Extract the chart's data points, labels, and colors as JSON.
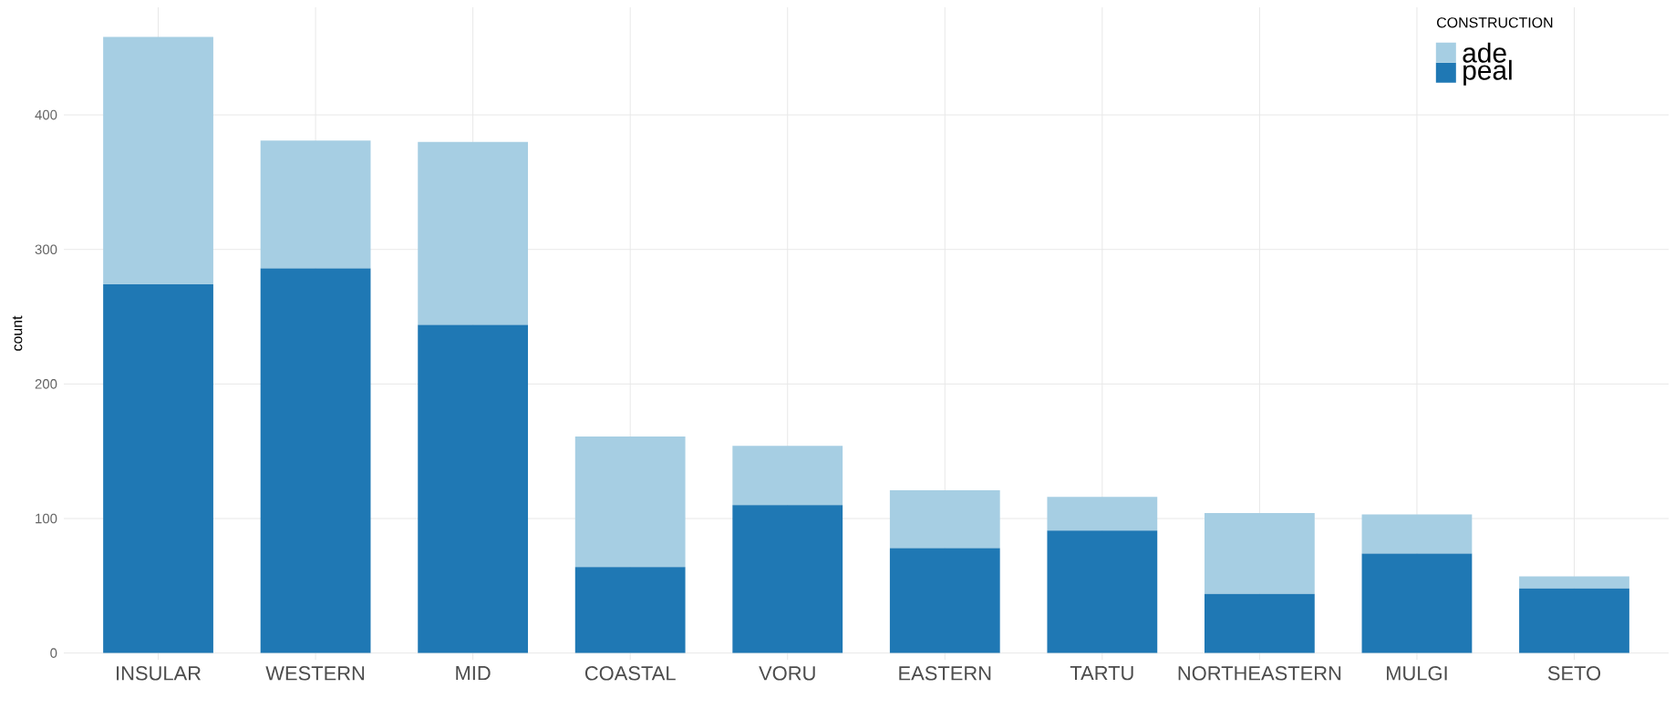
{
  "chart_data": {
    "type": "bar",
    "stacked": true,
    "ylabel": "count",
    "legend_title": "CONSTRUCTION",
    "categories": [
      "INSULAR",
      "WESTERN",
      "MID",
      "COASTAL",
      "VORU",
      "EASTERN",
      "TARTU",
      "NORTHEASTERN",
      "MULGI",
      "SETO"
    ],
    "series": [
      {
        "name": "peal",
        "color": "#1f78b4",
        "values": [
          274,
          286,
          244,
          64,
          110,
          78,
          91,
          44,
          74,
          48
        ]
      },
      {
        "name": "ade",
        "color": "#a6cee3",
        "values": [
          184,
          95,
          136,
          97,
          44,
          43,
          25,
          60,
          29,
          9
        ]
      }
    ],
    "ylim": [
      -5,
      480
    ],
    "yticks": [
      0,
      100,
      200,
      300,
      400
    ],
    "grid": true,
    "legend": "top right"
  }
}
